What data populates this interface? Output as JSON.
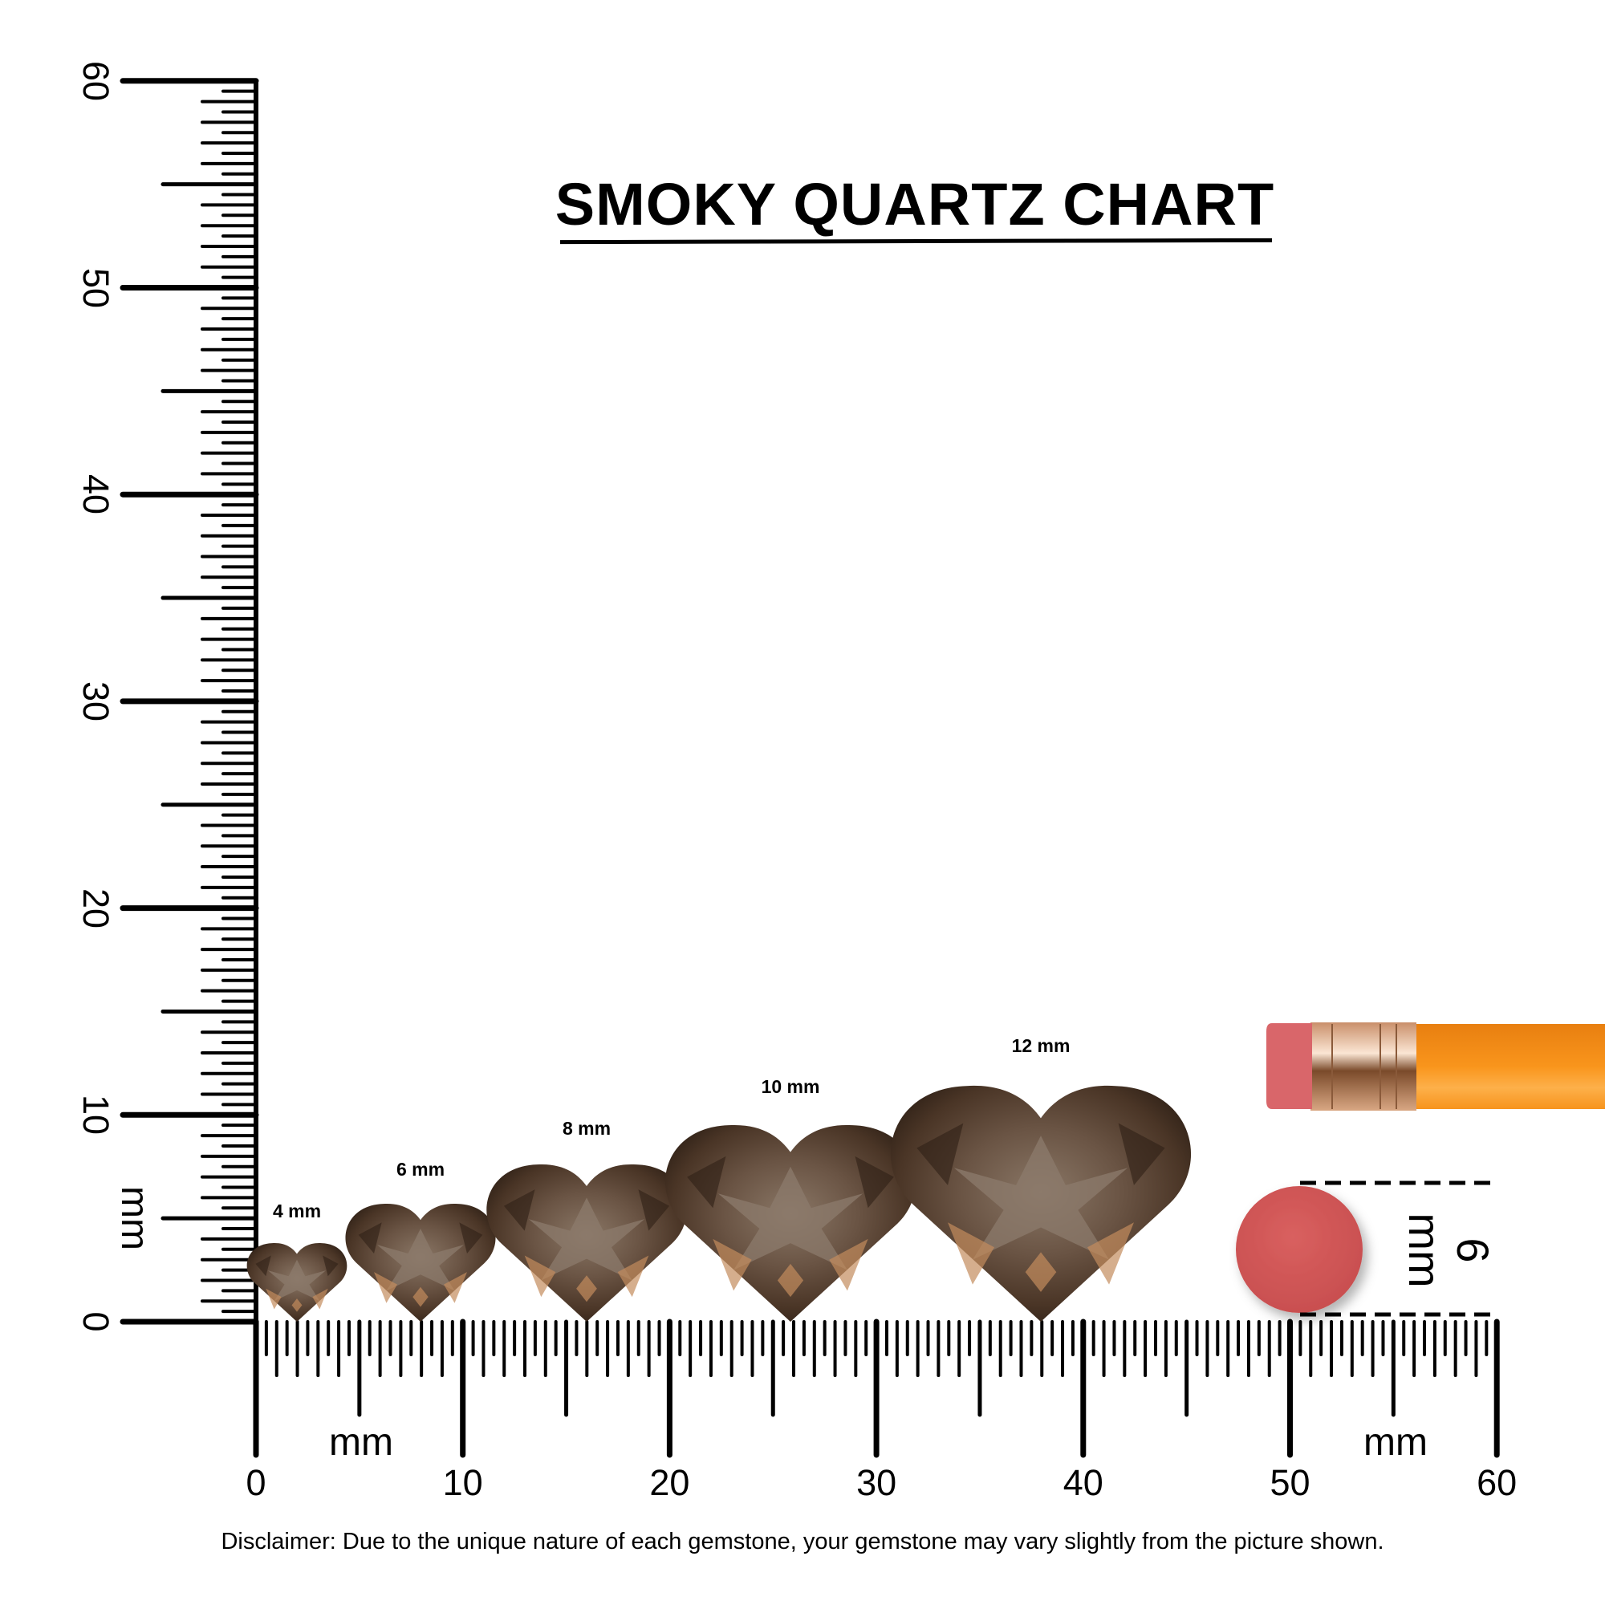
{
  "title": "SMOKY QUARTZ CHART",
  "unit_label": "mm",
  "ruler": {
    "range_mm": [
      0,
      60
    ],
    "x_tick_labels": [
      "0",
      "10",
      "20",
      "30",
      "40",
      "50",
      "60"
    ],
    "y_tick_labels": [
      "0",
      "10",
      "20",
      "30",
      "40",
      "50",
      "60"
    ],
    "x_unit_labels": [
      "mm",
      "mm"
    ],
    "y_unit_label": "mm"
  },
  "gemstones": [
    {
      "size_mm": 4,
      "label": "4 mm",
      "shape": "heart"
    },
    {
      "size_mm": 6,
      "label": "6 mm",
      "shape": "heart"
    },
    {
      "size_mm": 8,
      "label": "8 mm",
      "shape": "heart"
    },
    {
      "size_mm": 10,
      "label": "10 mm",
      "shape": "heart"
    },
    {
      "size_mm": 12,
      "label": "12 mm",
      "shape": "heart"
    }
  ],
  "reference": {
    "object": "pencil eraser",
    "size_mm": 6,
    "label": "6 mm",
    "eraser_color": "#d55b5b",
    "pencil_color": "#f7941d"
  },
  "gem_colors": {
    "dark": "#3a2a1f",
    "mid": "#7a6756",
    "highlight": "#c38b5c"
  },
  "disclaimer": "Disclaimer: Due to the unique nature of each gemstone, your gemstone may vary slightly from the picture shown."
}
